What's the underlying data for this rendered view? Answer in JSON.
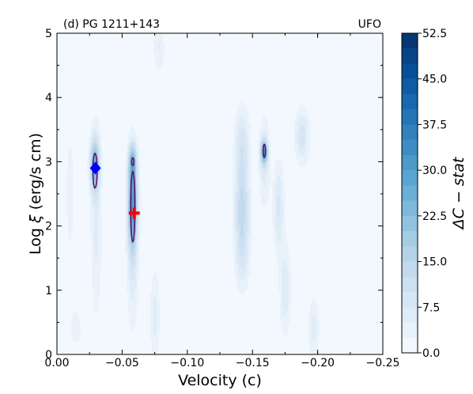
{
  "chart_data": {
    "type": "heatmap",
    "panel_label": "(d) PG 1211+143",
    "corner_label": "UFO",
    "xlabel": "Velocity (c)",
    "ylabel_prefix": "Log",
    "ylabel_symbol": "ξ",
    "ylabel_suffix": "(erg/s cm)",
    "xlim": [
      0.0,
      -0.25
    ],
    "ylim": [
      0,
      5
    ],
    "x_ticks": [
      0.0,
      -0.05,
      -0.1,
      -0.15,
      -0.2,
      -0.25
    ],
    "x_tick_labels": [
      "0.00",
      "−0.05",
      "−0.10",
      "−0.15",
      "−0.20",
      "−0.25"
    ],
    "y_ticks": [
      0,
      1,
      2,
      3,
      4,
      5
    ],
    "y_tick_labels": [
      "0",
      "1",
      "2",
      "3",
      "4",
      "5"
    ],
    "colorbar": {
      "label": "ΔC − stat",
      "min": 0.0,
      "max": 52.5,
      "ticks": [
        0.0,
        7.5,
        15.0,
        22.5,
        30.0,
        37.5,
        45.0,
        52.5
      ],
      "tick_labels": [
        "0.0",
        "7.5",
        "15.0",
        "22.5",
        "30.0",
        "37.5",
        "45.0",
        "52.5"
      ],
      "levels": 21,
      "colormap": "Blues",
      "color_low": "#f7fbff",
      "color_high": "#08306b"
    },
    "blobs": [
      {
        "x": -0.029,
        "y": 2.95,
        "wx": 0.0025,
        "wy": 0.28,
        "v": 22
      },
      {
        "x": -0.03,
        "y": 2.1,
        "wx": 0.003,
        "wy": 1.1,
        "v": 6
      },
      {
        "x": -0.058,
        "y": 2.35,
        "wx": 0.0025,
        "wy": 0.45,
        "v": 24
      },
      {
        "x": -0.058,
        "y": 1.8,
        "wx": 0.003,
        "wy": 0.9,
        "v": 9
      },
      {
        "x": -0.058,
        "y": 3.0,
        "wx": 0.0022,
        "wy": 0.2,
        "v": 16
      },
      {
        "x": -0.075,
        "y": 0.6,
        "wx": 0.0025,
        "wy": 0.5,
        "v": 6
      },
      {
        "x": -0.078,
        "y": 4.8,
        "wx": 0.003,
        "wy": 0.3,
        "v": 5
      },
      {
        "x": -0.142,
        "y": 2.3,
        "wx": 0.004,
        "wy": 0.5,
        "v": 13
      },
      {
        "x": -0.142,
        "y": 3.3,
        "wx": 0.004,
        "wy": 0.4,
        "v": 8
      },
      {
        "x": -0.142,
        "y": 1.5,
        "wx": 0.004,
        "wy": 0.4,
        "v": 6
      },
      {
        "x": -0.159,
        "y": 3.15,
        "wx": 0.0018,
        "wy": 0.12,
        "v": 26
      },
      {
        "x": -0.159,
        "y": 3.0,
        "wx": 0.003,
        "wy": 0.5,
        "v": 7
      },
      {
        "x": -0.17,
        "y": 2.3,
        "wx": 0.003,
        "wy": 0.5,
        "v": 8
      },
      {
        "x": -0.175,
        "y": 1.0,
        "wx": 0.003,
        "wy": 0.5,
        "v": 7
      },
      {
        "x": -0.188,
        "y": 3.4,
        "wx": 0.004,
        "wy": 0.3,
        "v": 9
      },
      {
        "x": -0.197,
        "y": 0.4,
        "wx": 0.003,
        "wy": 0.35,
        "v": 6
      },
      {
        "x": -0.01,
        "y": 2.5,
        "wx": 0.004,
        "wy": 1.2,
        "v": 3
      },
      {
        "x": -0.09,
        "y": 2.0,
        "wx": 0.006,
        "wy": 2.0,
        "v": 2.5
      },
      {
        "x": -0.235,
        "y": 2.0,
        "wx": 0.006,
        "wy": 1.5,
        "v": 2.5
      },
      {
        "x": -0.015,
        "y": 0.4,
        "wx": 0.004,
        "wy": 0.3,
        "v": 3
      }
    ],
    "contours": [
      {
        "x": -0.0292,
        "y": 2.86,
        "rx": 0.0016,
        "ry": 0.27
      },
      {
        "x": -0.0582,
        "y": 2.3,
        "rx": 0.0016,
        "ry": 0.55
      },
      {
        "x": -0.0582,
        "y": 3.0,
        "rx": 0.0009,
        "ry": 0.06
      },
      {
        "x": -0.1591,
        "y": 3.17,
        "rx": 0.0007,
        "ry": 0.1
      }
    ],
    "contour_color": "#5a1470",
    "markers": [
      {
        "shape": "diamond",
        "x": -0.0295,
        "y": 2.9,
        "color": "#0000ff"
      },
      {
        "shape": "plus",
        "x": -0.0593,
        "y": 2.2,
        "color": "#ff0000"
      }
    ]
  }
}
